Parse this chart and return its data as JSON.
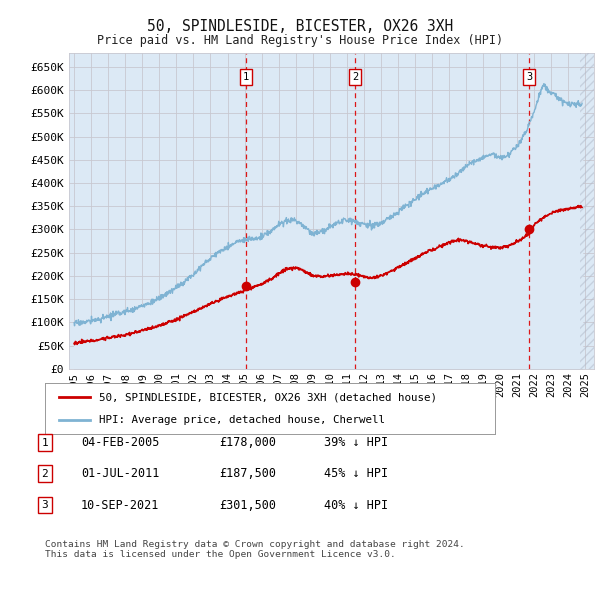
{
  "title": "50, SPINDLESIDE, BICESTER, OX26 3XH",
  "subtitle": "Price paid vs. HM Land Registry's House Price Index (HPI)",
  "ylabel_ticks": [
    "£0",
    "£50K",
    "£100K",
    "£150K",
    "£200K",
    "£250K",
    "£300K",
    "£350K",
    "£400K",
    "£450K",
    "£500K",
    "£550K",
    "£600K",
    "£650K"
  ],
  "ytick_values": [
    0,
    50000,
    100000,
    150000,
    200000,
    250000,
    300000,
    350000,
    400000,
    450000,
    500000,
    550000,
    600000,
    650000
  ],
  "ylim": [
    0,
    680000
  ],
  "xlim_start": 1994.7,
  "xlim_end": 2025.5,
  "sale_dates": [
    2005.09,
    2011.5,
    2021.7
  ],
  "sale_prices": [
    178000,
    187500,
    301500
  ],
  "sale_labels": [
    "1",
    "2",
    "3"
  ],
  "vline_color": "#dd0000",
  "hpi_color": "#7fb3d3",
  "sale_color": "#cc0000",
  "hpi_fill_color": "#dce9f5",
  "background_color": "#ffffff",
  "grid_color": "#c8c8d0",
  "legend_line1": "50, SPINDLESIDE, BICESTER, OX26 3XH (detached house)",
  "legend_line2": "HPI: Average price, detached house, Cherwell",
  "table_data": [
    [
      "1",
      "04-FEB-2005",
      "£178,000",
      "39% ↓ HPI"
    ],
    [
      "2",
      "01-JUL-2011",
      "£187,500",
      "45% ↓ HPI"
    ],
    [
      "3",
      "10-SEP-2021",
      "£301,500",
      "40% ↓ HPI"
    ]
  ],
  "footnote": "Contains HM Land Registry data © Crown copyright and database right 2024.\nThis data is licensed under the Open Government Licence v3.0.",
  "xtick_years": [
    1995,
    1996,
    1997,
    1998,
    1999,
    2000,
    2001,
    2002,
    2003,
    2004,
    2005,
    2006,
    2007,
    2008,
    2009,
    2010,
    2011,
    2012,
    2013,
    2014,
    2015,
    2016,
    2017,
    2018,
    2019,
    2020,
    2021,
    2022,
    2023,
    2024,
    2025
  ],
  "hatch_start": 2024.7,
  "hatch_color": "#b0b8c8"
}
